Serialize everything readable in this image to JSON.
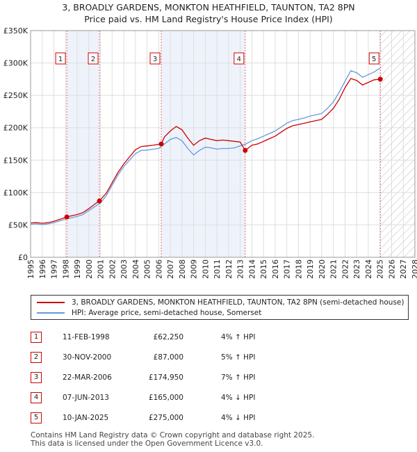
{
  "title_line1": "3, BROADLY GARDENS, MONKTON HEATHFIELD, TAUNTON, TA2 8PN",
  "title_line2": "Price paid vs. HM Land Registry's House Price Index (HPI)",
  "legend": {
    "property": "3, BROADLY GARDENS, MONKTON HEATHFIELD, TAUNTON, TA2 8PN (semi-detached house)",
    "hpi": "HPI: Average price, semi-detached house, Somerset"
  },
  "colors": {
    "property": "#cc0000",
    "hpi": "#6699dd",
    "band": "#eef3fb",
    "hatch": "#bbbbbb"
  },
  "transactions": [
    {
      "num": "1",
      "date": "11-FEB-1998",
      "price": "£62,250",
      "hpi": "4% ↑ HPI"
    },
    {
      "num": "2",
      "date": "30-NOV-2000",
      "price": "£87,000",
      "hpi": "5% ↑ HPI"
    },
    {
      "num": "3",
      "date": "22-MAR-2006",
      "price": "£174,950",
      "hpi": "7% ↑ HPI"
    },
    {
      "num": "4",
      "date": "07-JUN-2013",
      "price": "£165,000",
      "hpi": "4% ↓ HPI"
    },
    {
      "num": "5",
      "date": "10-JAN-2025",
      "price": "£275,000",
      "hpi": "4% ↓ HPI"
    }
  ],
  "footer_line1": "Contains HM Land Registry data © Crown copyright and database right 2025.",
  "footer_line2": "This data is licensed under the Open Government Licence v3.0.",
  "chart_data": {
    "type": "line",
    "x_range": [
      1995,
      2028
    ],
    "ylim": [
      0,
      350000
    ],
    "y_ticks": [
      0,
      50000,
      100000,
      150000,
      200000,
      250000,
      300000,
      350000
    ],
    "y_tick_labels": [
      "£0",
      "£50K",
      "£100K",
      "£150K",
      "£200K",
      "£250K",
      "£300K",
      "£350K"
    ],
    "x_ticks": [
      1995,
      1996,
      1997,
      1998,
      1999,
      2000,
      2001,
      2002,
      2003,
      2004,
      2005,
      2006,
      2007,
      2008,
      2009,
      2010,
      2011,
      2012,
      2013,
      2014,
      2015,
      2016,
      2017,
      2018,
      2019,
      2020,
      2021,
      2022,
      2023,
      2024,
      2025,
      2026,
      2027,
      2028
    ],
    "forecast_start": 2025.05,
    "shaded_periods": [
      [
        1998.11,
        2000.91
      ],
      [
        2006.22,
        2013.43
      ]
    ],
    "sales": [
      {
        "label": "1",
        "x": 1998.11,
        "y": 62250
      },
      {
        "label": "2",
        "x": 2000.91,
        "y": 87000
      },
      {
        "label": "3",
        "x": 2006.22,
        "y": 174950
      },
      {
        "label": "4",
        "x": 2013.43,
        "y": 165000
      },
      {
        "label": "5",
        "x": 2025.03,
        "y": 275000
      }
    ],
    "series": [
      {
        "name": "HPI: Average price, semi-detached house, Somerset",
        "x": [
          1995,
          1995.5,
          1996,
          1996.5,
          1997,
          1997.5,
          1998,
          1998.5,
          1999,
          1999.5,
          2000,
          2000.5,
          2001,
          2001.5,
          2002,
          2002.5,
          2003,
          2003.5,
          2004,
          2004.5,
          2005,
          2005.5,
          2006,
          2006.5,
          2007,
          2007.5,
          2008,
          2008.5,
          2009,
          2009.5,
          2010,
          2010.5,
          2011,
          2011.5,
          2012,
          2012.5,
          2013,
          2013.5,
          2014,
          2014.5,
          2015,
          2015.5,
          2016,
          2016.5,
          2017,
          2017.5,
          2018,
          2018.5,
          2019,
          2019.5,
          2020,
          2020.5,
          2021,
          2021.5,
          2022,
          2022.5,
          2023,
          2023.5,
          2024,
          2024.5,
          2025
        ],
        "values": [
          51000,
          51500,
          50500,
          51500,
          53500,
          56000,
          59000,
          61000,
          63000,
          66000,
          72000,
          78000,
          84000,
          95000,
          111000,
          127000,
          140000,
          150000,
          160000,
          165000,
          165500,
          167000,
          168000,
          175000,
          182000,
          185000,
          180000,
          168000,
          158000,
          165000,
          170000,
          169000,
          167000,
          168000,
          168000,
          169000,
          172000,
          175000,
          180000,
          183000,
          187000,
          191000,
          195000,
          201000,
          207000,
          211000,
          213000,
          215000,
          218000,
          220000,
          222000,
          230000,
          240000,
          255000,
          272000,
          288000,
          285000,
          278000,
          282000,
          286000,
          292000
        ]
      },
      {
        "name": "3, BROADLY GARDENS, MONKTON HEATHFIELD, TAUNTON, TA2 8PN (semi-detached house)",
        "x": [
          1995,
          1995.5,
          1996,
          1996.5,
          1997,
          1997.5,
          1998.11,
          1998.5,
          1999,
          1999.5,
          2000,
          2000.5,
          2000.91,
          2001.5,
          2002,
          2002.5,
          2003,
          2003.5,
          2004,
          2004.5,
          2005,
          2005.5,
          2006.22,
          2006.5,
          2007,
          2007.5,
          2008,
          2008.5,
          2009,
          2009.5,
          2010,
          2010.5,
          2011,
          2011.5,
          2012,
          2012.5,
          2013,
          2013.43,
          2014,
          2014.5,
          2015,
          2015.5,
          2016,
          2016.5,
          2017,
          2017.5,
          2018,
          2018.5,
          2019,
          2019.5,
          2020,
          2020.5,
          2021,
          2021.5,
          2022,
          2022.5,
          2023,
          2023.5,
          2024,
          2024.5,
          2025.03
        ],
        "values": [
          53000,
          53500,
          52500,
          53500,
          55500,
          58500,
          62250,
          64000,
          66000,
          69000,
          75000,
          82000,
          87000,
          99000,
          115000,
          131000,
          144000,
          155000,
          166000,
          171000,
          172000,
          173000,
          174950,
          186000,
          195000,
          202000,
          197000,
          184000,
          173000,
          180000,
          184000,
          182000,
          180000,
          181000,
          180000,
          179000,
          178000,
          165000,
          173000,
          175000,
          179000,
          183000,
          187000,
          193000,
          199000,
          203000,
          205000,
          207000,
          209000,
          211000,
          213000,
          221000,
          230000,
          244000,
          262000,
          276000,
          273000,
          266000,
          270000,
          274000,
          275000
        ]
      }
    ]
  }
}
